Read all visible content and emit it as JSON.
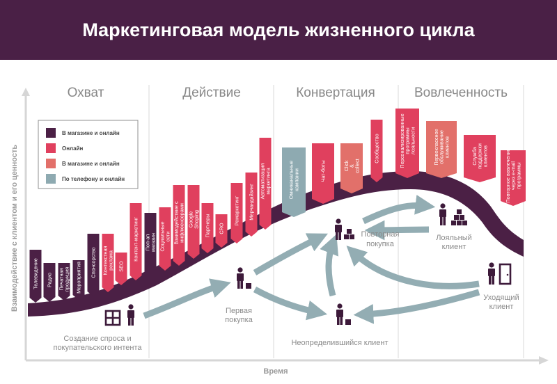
{
  "title": "Маркетинговая модель жизненного цикла",
  "colors": {
    "header": "#4a2046",
    "dark": "#4b2045",
    "online": "#e0405e",
    "coral": "#e2706a",
    "teal": "#8eaab1",
    "arrow": "#93adb3",
    "grid": "#d8d8d8"
  },
  "stages": [
    "Охват",
    "Действие",
    "Конвертация",
    "Вовлеченность"
  ],
  "legend": [
    {
      "label": "В магазине и онлайн",
      "color": "dark"
    },
    {
      "label": "Онлайн",
      "color": "online"
    },
    {
      "label": "В магазине и онлайн",
      "color": "coral"
    },
    {
      "label": "По телефону и онлайн",
      "color": "teal"
    }
  ],
  "flags": [
    {
      "label": "Телевидение",
      "color": "dark"
    },
    {
      "label": "Радио",
      "color": "dark"
    },
    {
      "label": "Печатная продукция",
      "color": "dark"
    },
    {
      "label": "Мероприятия",
      "color": "dark"
    },
    {
      "label": "Спонсорство",
      "color": "dark"
    },
    {
      "label": "Контекстная реклама",
      "color": "online"
    },
    {
      "label": "SEO",
      "color": "online"
    },
    {
      "label": "Контент-маркетинг",
      "color": "online"
    },
    {
      "label": "Поп-ап магазин",
      "color": "dark"
    },
    {
      "label": "Социальные сети",
      "color": "online"
    },
    {
      "label": "Взаимодействие с инфлюенсерами",
      "color": "online"
    },
    {
      "label": "Google Shoping",
      "color": "online"
    },
    {
      "label": "Партнеры",
      "color": "online"
    },
    {
      "label": "CRO",
      "color": "online"
    },
    {
      "label": "Ремаркетинг",
      "color": "online"
    },
    {
      "label": "Мерчандайзинг",
      "color": "online"
    },
    {
      "label": "Автоматизация маркетинга",
      "color": "online"
    },
    {
      "label": "Омниканальные кампании",
      "color": "teal"
    },
    {
      "label": "Чат-боты",
      "color": "online"
    },
    {
      "label": "Click & collect",
      "color": "coral"
    },
    {
      "label": "Сообщество",
      "color": "online"
    },
    {
      "label": "Персонализированные программы лояльности",
      "color": "online"
    },
    {
      "label": "Первоклассное обслуживание клиентов",
      "color": "coral"
    },
    {
      "label": "Служба поддержки клиентов",
      "color": "online"
    },
    {
      "label": "Повторное вовлечение через e-mail программы",
      "color": "online"
    }
  ],
  "annotations": {
    "demand_line1": "Создание спроса и",
    "demand_line2": "покупательского интента",
    "first_line1": "Первая",
    "first_line2": "покупка",
    "repeat_line1": "Повторная",
    "repeat_line2": "покупка",
    "loyal_line1": "Лояльный",
    "loyal_line2": "клиент",
    "leaving_line1": "Уходящий",
    "leaving_line2": "клиент",
    "undecided": "Неопределившийся клиент"
  },
  "axes": {
    "x": "Время",
    "y": "Взаимодействие с клиентом и его ценность"
  }
}
